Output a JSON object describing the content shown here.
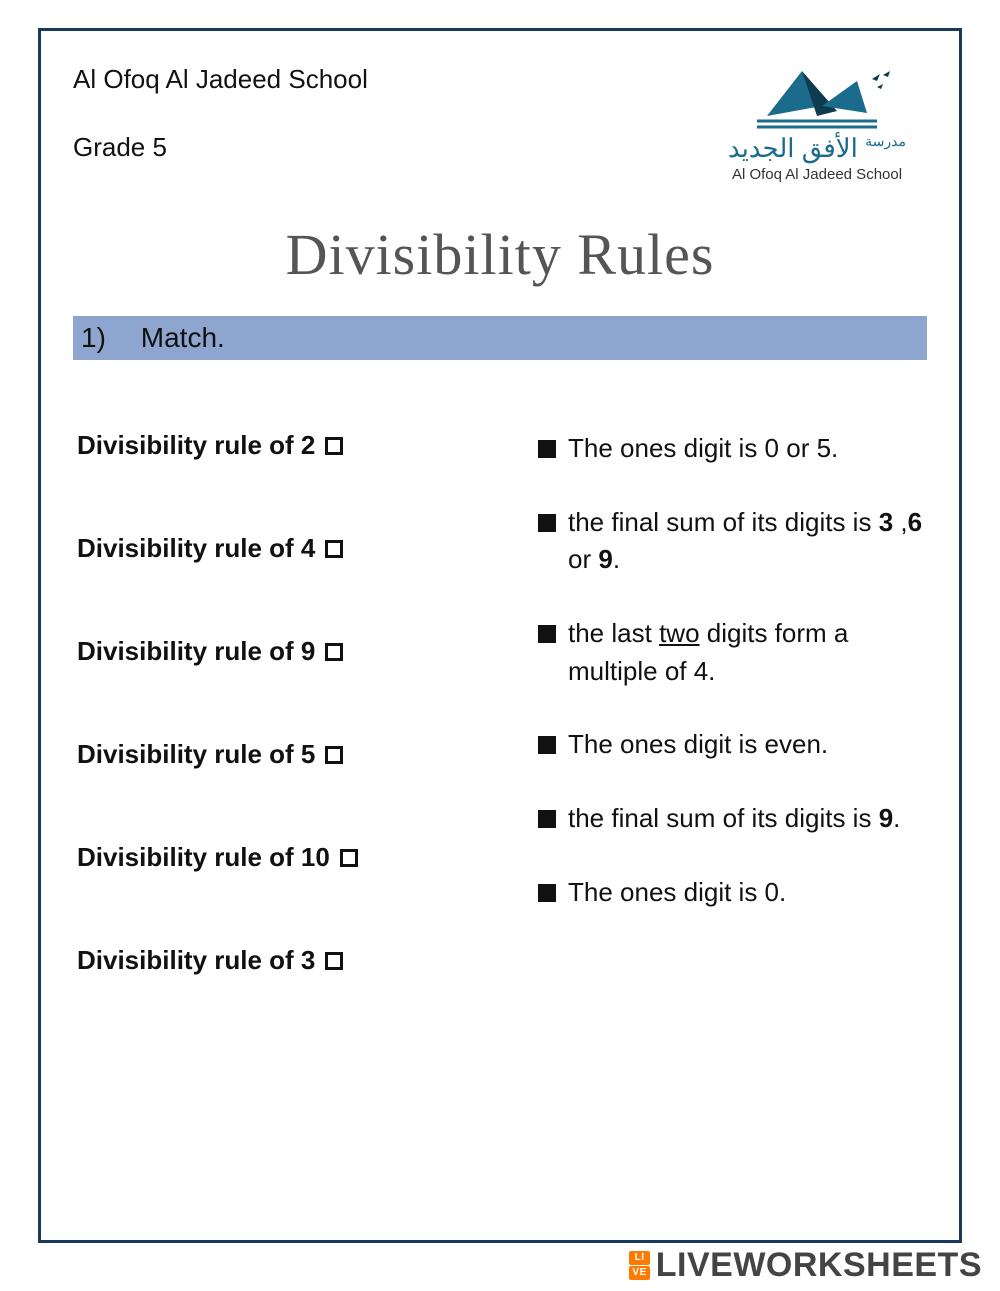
{
  "header": {
    "school_name": "Al Ofoq Al Jadeed School",
    "grade": "Grade 5",
    "logo_ar": "الأفق الجديد",
    "logo_ar_prefix": "مدرسة",
    "logo_en": "Al Ofoq Al Jadeed School"
  },
  "title": "Divisibility Rules",
  "section": {
    "number": "1)",
    "label": "Match."
  },
  "rules": [
    "Divisibility rule of 2",
    "Divisibility rule of 4",
    "Divisibility rule of 9",
    "Divisibility rule of 5",
    "Divisibility rule of 10",
    "Divisibility rule of 3"
  ],
  "descriptions": [
    "The ones digit is 0 or 5.",
    "the final sum of its digits is <b>3</b> ,<b>6</b> or <b>9</b>.",
    "the last <u>two</u> digits form a multiple of 4.",
    "The ones digit is even.",
    "the final sum of its digits is <b>9</b>.",
    "The ones digit is 0."
  ],
  "watermark": "LIVEWORKSHEETS",
  "colors": {
    "border": "#1a3a5c",
    "section_bg": "#8ea5cf",
    "title": "#555555",
    "logo_primary": "#1a6b8c",
    "logo_dark": "#0d3b4f",
    "wm_text": "#444444",
    "wm_badge": "#ff7a00"
  }
}
